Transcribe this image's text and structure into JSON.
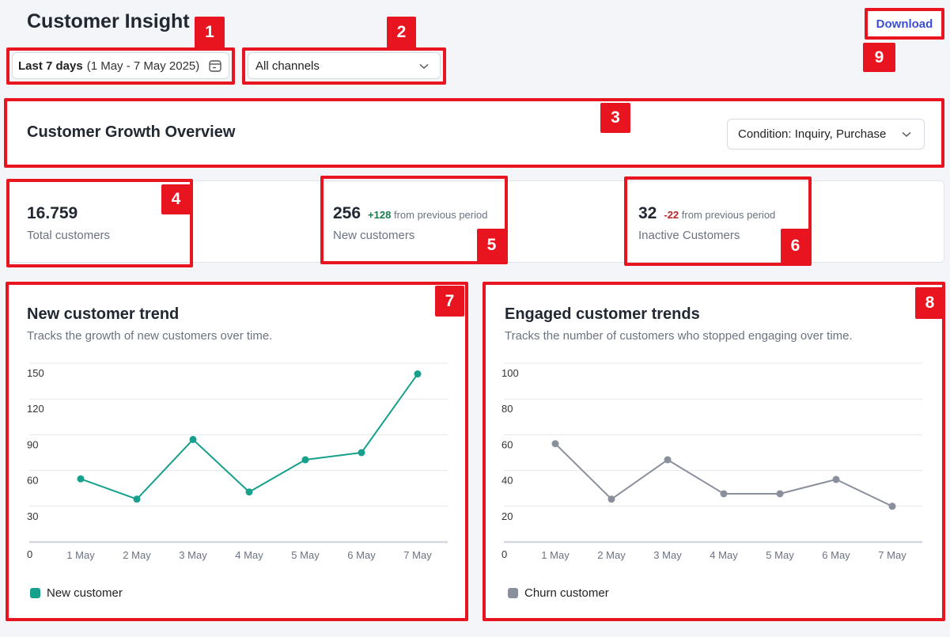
{
  "header": {
    "title": "Customer Insight",
    "download_label": "Download"
  },
  "filters": {
    "date_bold": "Last 7 days",
    "date_range": "(1 May - 7 May 2025)",
    "channel_value": "All channels"
  },
  "overview": {
    "title": "Customer Growth Overview",
    "condition_value": "Condition: Inquiry, Purchase"
  },
  "stats": {
    "total": {
      "value": "16.759",
      "label": "Total customers"
    },
    "new": {
      "value": "256",
      "delta": "+128",
      "delta_text": "from previous period",
      "label": "New customers"
    },
    "inactive": {
      "value": "32",
      "delta": "-22",
      "delta_text": "from previous period",
      "label": "Inactive Customers"
    }
  },
  "new_trend": {
    "title": "New customer trend",
    "subtitle": "Tracks the growth of new customers over time.",
    "legend": "New customer"
  },
  "engaged_trend": {
    "title": "Engaged customer trends",
    "subtitle": "Tracks the number of customers who stopped engaging over time.",
    "legend": "Churn customer"
  },
  "badges": [
    "1",
    "2",
    "3",
    "4",
    "5",
    "6",
    "7",
    "8",
    "9"
  ],
  "icons": {
    "calendar": "calendar-icon",
    "chevron": "chevron-down-icon"
  },
  "colors": {
    "highlight": "#e8141f",
    "new_series": "#17a08c",
    "churn_series": "#8a8f9c",
    "download_text": "#3b4fd6",
    "positive_delta": "#1d7a4a",
    "negative_delta": "#b42626"
  },
  "chart_data": [
    {
      "type": "line",
      "title": "New customer trend",
      "categories": [
        "1 May",
        "2 May",
        "3 May",
        "4 May",
        "5 May",
        "6 May",
        "7 May"
      ],
      "series": [
        {
          "name": "New customer",
          "values": [
            53,
            36,
            86,
            42,
            69,
            75,
            141
          ]
        }
      ],
      "yticks": [
        0,
        30,
        60,
        90,
        120,
        150
      ],
      "ylim": [
        0,
        150
      ],
      "grid": true,
      "legend": "bottom-left"
    },
    {
      "type": "line",
      "title": "Engaged customer trends",
      "categories": [
        "1 May",
        "2 May",
        "3 May",
        "4 May",
        "5 May",
        "6 May",
        "7 May"
      ],
      "series": [
        {
          "name": "Churn customer",
          "values": [
            55,
            24,
            46,
            27,
            27,
            35,
            20
          ]
        }
      ],
      "yticks": [
        0,
        20,
        40,
        60,
        80,
        100
      ],
      "ylim": [
        0,
        100
      ],
      "grid": true,
      "legend": "bottom-left"
    }
  ]
}
